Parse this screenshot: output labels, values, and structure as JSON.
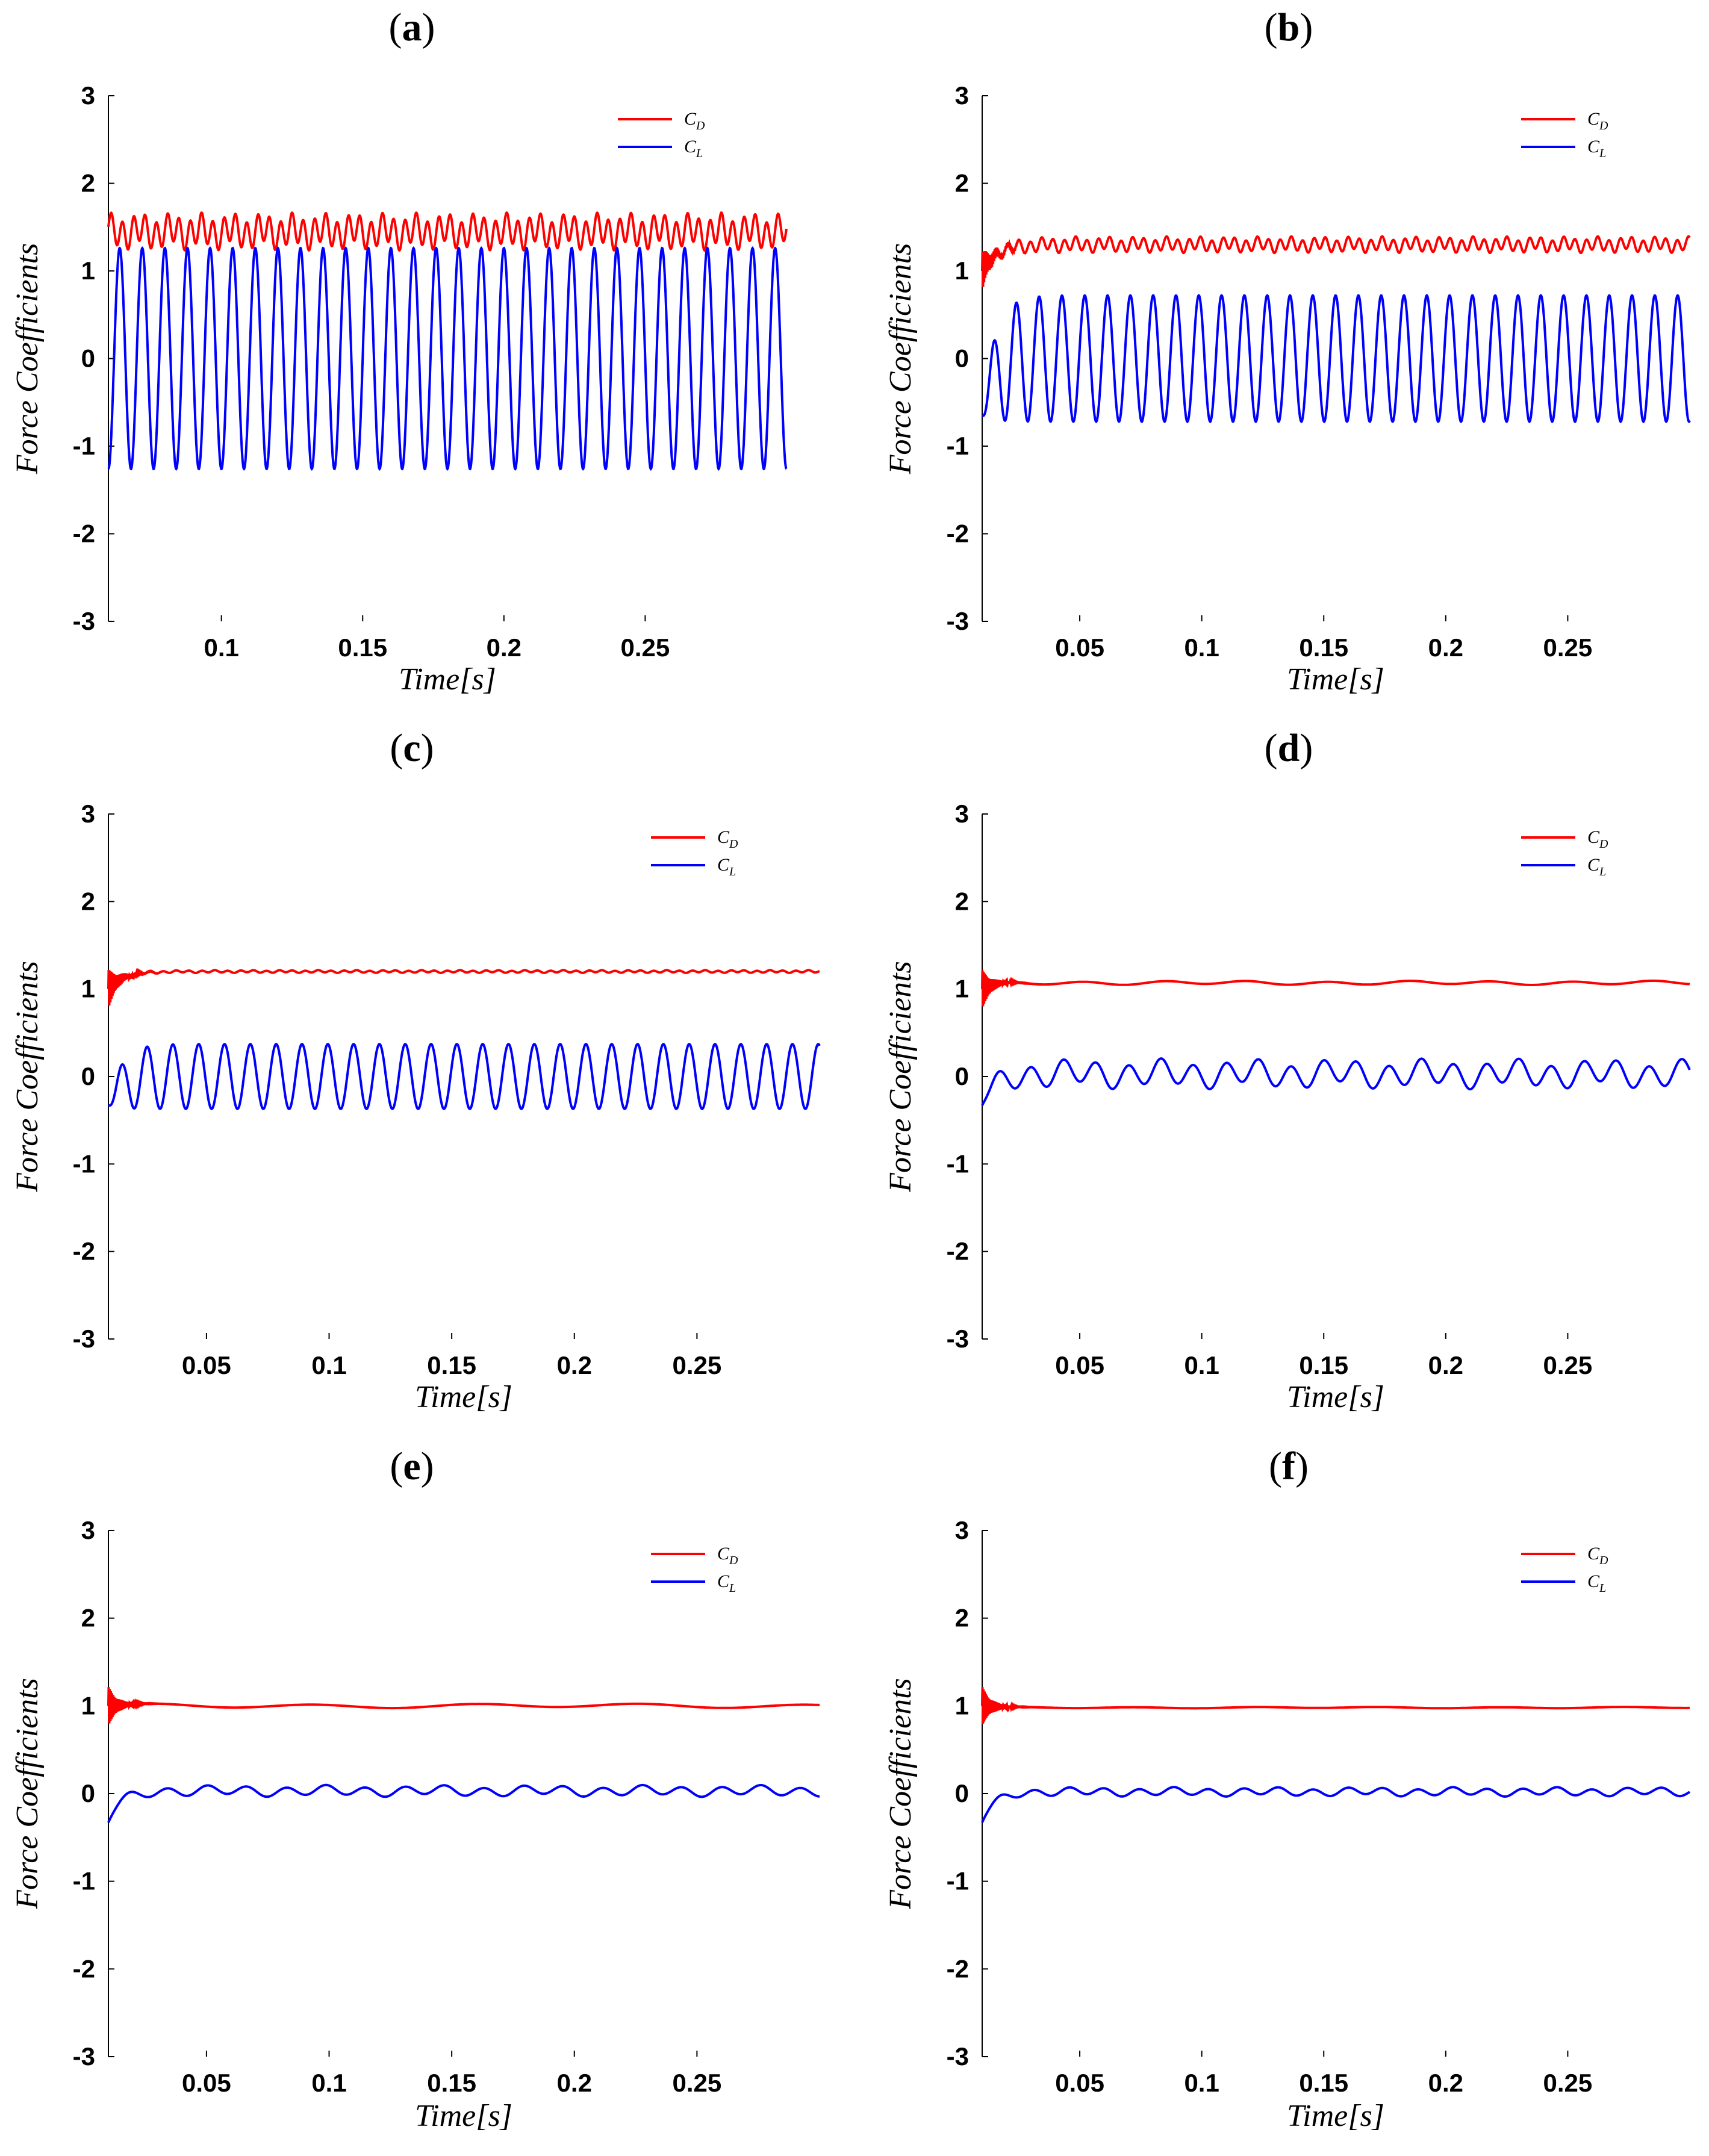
{
  "figure": {
    "panels": [
      "a",
      "b",
      "c",
      "d",
      "e",
      "f"
    ]
  },
  "chart_data": [
    {
      "panel": "a",
      "type": "line",
      "xlabel": "Time[s]",
      "ylabel": "Force Coefficients",
      "xlim": [
        0.06,
        0.3
      ],
      "ylim": [
        -3,
        3
      ],
      "xticks": [
        "0.1",
        "0.15",
        "0.2",
        "0.25"
      ],
      "yticks": [
        "3",
        "2",
        "1",
        "0",
        "-1",
        "-2",
        "-3"
      ],
      "legend": [
        "C_D",
        "C_L"
      ],
      "series": [
        {
          "name": "C_D",
          "color": "#ff0000",
          "mean": 1.45,
          "amplitude": 0.16,
          "transient": 0,
          "frequency_hz": 250,
          "start": 0.06,
          "end": 0.3
        },
        {
          "name": "C_L",
          "color": "#0000ff",
          "mean": 0.0,
          "amplitude": 1.26,
          "transient": 0,
          "frequency_hz": 125,
          "start": 0.06,
          "end": 0.3
        }
      ]
    },
    {
      "panel": "b",
      "type": "line",
      "xlabel": "Time[s]",
      "ylabel": "Force Coefficients",
      "xlim": [
        0.01,
        0.3
      ],
      "ylim": [
        -3,
        3
      ],
      "xticks": [
        "0.05",
        "0.1",
        "0.15",
        "0.2",
        "0.25"
      ],
      "yticks": [
        "3",
        "2",
        "1",
        "0",
        "-1",
        "-2",
        "-3"
      ],
      "legend": [
        "C_D",
        "C_L"
      ],
      "series": [
        {
          "name": "C_D",
          "color": "#ff0000",
          "mean": 1.3,
          "amplitude": 0.07,
          "transient": 1,
          "frequency_hz": 215,
          "start": 0.01,
          "end": 0.3
        },
        {
          "name": "C_L",
          "color": "#0000ff",
          "mean": 0.0,
          "amplitude": 0.72,
          "transient": 1,
          "frequency_hz": 107,
          "start": 0.01,
          "end": 0.3
        }
      ]
    },
    {
      "panel": "c",
      "type": "line",
      "xlabel": "Time[s]",
      "ylabel": "Force Coefficients",
      "xlim": [
        0.01,
        0.3
      ],
      "ylim": [
        -3,
        3
      ],
      "xticks": [
        "0.05",
        "0.1",
        "0.15",
        "0.2",
        "0.25"
      ],
      "yticks": [
        "3",
        "2",
        "1",
        "0",
        "-1",
        "-2",
        "-3"
      ],
      "legend": [
        "C_D",
        "C_L"
      ],
      "series": [
        {
          "name": "C_D",
          "color": "#ff0000",
          "mean": 1.2,
          "amplitude": 0.012,
          "transient": 1,
          "frequency_hz": 190,
          "start": 0.01,
          "end": 0.3
        },
        {
          "name": "C_L",
          "color": "#0000ff",
          "mean": 0.0,
          "amplitude": 0.37,
          "transient": 1,
          "frequency_hz": 95,
          "start": 0.01,
          "end": 0.3
        }
      ]
    },
    {
      "panel": "d",
      "type": "line",
      "xlabel": "Time[s]",
      "ylabel": "Force Coefficients",
      "xlim": [
        0.01,
        0.3
      ],
      "ylim": [
        -3,
        3
      ],
      "xticks": [
        "0.05",
        "0.1",
        "0.15",
        "0.2",
        "0.25"
      ],
      "yticks": [
        "3",
        "2",
        "1",
        "0",
        "-1",
        "-2",
        "-3"
      ],
      "legend": [
        "C_D",
        "C_L"
      ],
      "series": [
        {
          "name": "C_D",
          "color": "#ff0000",
          "mean": 1.07,
          "amplitude": 0.018,
          "transient": 1,
          "frequency_hz": 30,
          "start": 0.01,
          "end": 0.3
        },
        {
          "name": "C_L",
          "color": "#0000ff",
          "mean": 0.03,
          "amplitude": 0.13,
          "transient": 1,
          "frequency_hz": 75,
          "start": 0.01,
          "end": 0.3
        }
      ]
    },
    {
      "panel": "e",
      "type": "line",
      "xlabel": "Time[s]",
      "ylabel": "Force Coefficients",
      "xlim": [
        0.01,
        0.3
      ],
      "ylim": [
        -3,
        3
      ],
      "xticks": [
        "0.05",
        "0.1",
        "0.15",
        "0.2",
        "0.25"
      ],
      "yticks": [
        "3",
        "2",
        "1",
        "0",
        "-1",
        "-2",
        "-3"
      ],
      "legend": [
        "C_D",
        "C_L"
      ],
      "series": [
        {
          "name": "C_D",
          "color": "#ff0000",
          "mean": 1.0,
          "amplitude": 0.02,
          "transient": 1,
          "frequency_hz": 15,
          "start": 0.01,
          "end": 0.3
        },
        {
          "name": "C_L",
          "color": "#0000ff",
          "mean": 0.03,
          "amplitude": 0.05,
          "transient": 1,
          "frequency_hz": 62,
          "start": 0.01,
          "end": 0.3
        }
      ]
    },
    {
      "panel": "f",
      "type": "line",
      "xlabel": "Time[s]",
      "ylabel": "Force Coefficients",
      "xlim": [
        0.01,
        0.3
      ],
      "ylim": [
        -3,
        3
      ],
      "xticks": [
        "0.05",
        "0.1",
        "0.15",
        "0.2",
        "0.25"
      ],
      "yticks": [
        "3",
        "2",
        "1",
        "0",
        "-1",
        "-2",
        "-3"
      ],
      "legend": [
        "C_D",
        "C_L"
      ],
      "series": [
        {
          "name": "C_D",
          "color": "#ff0000",
          "mean": 0.98,
          "amplitude": 0.006,
          "transient": 1,
          "frequency_hz": 20,
          "start": 0.01,
          "end": 0.3
        },
        {
          "name": "C_L",
          "color": "#0000ff",
          "mean": 0.02,
          "amplitude": 0.04,
          "transient": 1,
          "frequency_hz": 70,
          "start": 0.01,
          "end": 0.3
        }
      ]
    }
  ]
}
